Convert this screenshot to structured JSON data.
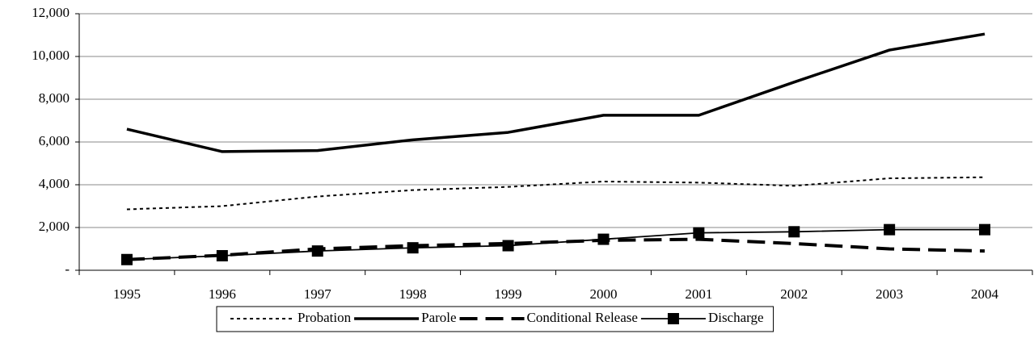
{
  "chart_data": {
    "type": "line",
    "categories": [
      "1995",
      "1996",
      "1997",
      "1998",
      "1999",
      "2000",
      "2001",
      "2002",
      "2003",
      "2004"
    ],
    "series": [
      {
        "name": "Probation",
        "color": "#000000",
        "style": "dotted",
        "values": [
          2850,
          3000,
          3450,
          3750,
          3900,
          4150,
          4100,
          3950,
          4300,
          4350
        ]
      },
      {
        "name": "Parole",
        "color": "#000000",
        "style": "solid-thick",
        "values": [
          6600,
          5550,
          5600,
          6100,
          6450,
          7250,
          7250,
          8800,
          10300,
          11050
        ]
      },
      {
        "name": "Conditional Release",
        "color": "#000000",
        "style": "dashed",
        "values": [
          500,
          700,
          1000,
          1150,
          1250,
          1400,
          1450,
          1250,
          1000,
          900
        ]
      },
      {
        "name": "Discharge",
        "color": "#000000",
        "style": "solid-square",
        "values": [
          500,
          680,
          900,
          1050,
          1150,
          1450,
          1750,
          1800,
          1900,
          1900
        ]
      }
    ],
    "ylim": [
      0,
      12000
    ],
    "yticks": [
      {
        "value": 0,
        "label": "-"
      },
      {
        "value": 2000,
        "label": "2,000"
      },
      {
        "value": 4000,
        "label": "4,000"
      },
      {
        "value": 6000,
        "label": "6,000"
      },
      {
        "value": 8000,
        "label": "8,000"
      },
      {
        "value": 10000,
        "label": "10,000"
      },
      {
        "value": 12000,
        "label": "12,000"
      }
    ],
    "grid": true,
    "legend": "bottom"
  }
}
